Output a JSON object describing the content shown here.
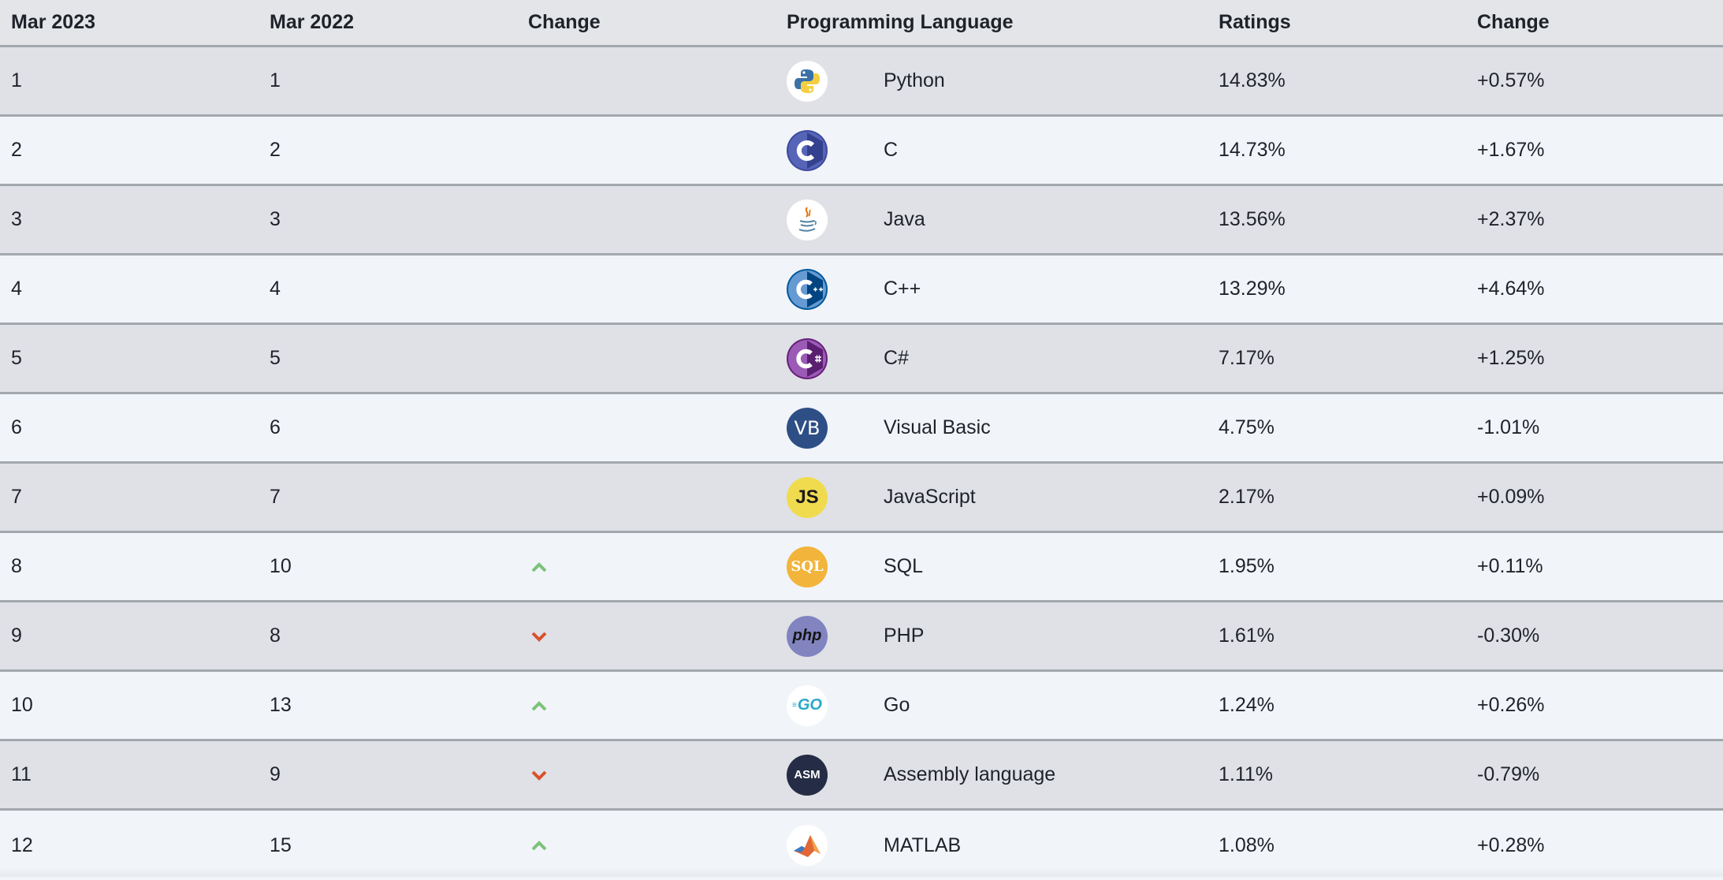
{
  "header": {
    "mar2023": "Mar 2023",
    "mar2022": "Mar 2022",
    "change": "Change",
    "language": "Programming Language",
    "ratings": "Ratings",
    "rating_change": "Change"
  },
  "rows": [
    {
      "cur": "1",
      "prev": "1",
      "trend": "none",
      "icon": "python-logo-icon",
      "lang": "Python",
      "rating": "14.83%",
      "diff": "+0.57%"
    },
    {
      "cur": "2",
      "prev": "2",
      "trend": "none",
      "icon": "c-logo-icon",
      "lang": "C",
      "rating": "14.73%",
      "diff": "+1.67%"
    },
    {
      "cur": "3",
      "prev": "3",
      "trend": "none",
      "icon": "java-logo-icon",
      "lang": "Java",
      "rating": "13.56%",
      "diff": "+2.37%"
    },
    {
      "cur": "4",
      "prev": "4",
      "trend": "none",
      "icon": "cpp-logo-icon",
      "lang": "C++",
      "rating": "13.29%",
      "diff": "+4.64%"
    },
    {
      "cur": "5",
      "prev": "5",
      "trend": "none",
      "icon": "csharp-logo-icon",
      "lang": "C#",
      "rating": "7.17%",
      "diff": "+1.25%"
    },
    {
      "cur": "6",
      "prev": "6",
      "trend": "none",
      "icon": "vb-logo-icon",
      "lang": "Visual Basic",
      "rating": "4.75%",
      "diff": "-1.01%"
    },
    {
      "cur": "7",
      "prev": "7",
      "trend": "none",
      "icon": "javascript-logo-icon",
      "lang": "JavaScript",
      "rating": "2.17%",
      "diff": "+0.09%"
    },
    {
      "cur": "8",
      "prev": "10",
      "trend": "up",
      "icon": "sql-logo-icon",
      "lang": "SQL",
      "rating": "1.95%",
      "diff": "+0.11%"
    },
    {
      "cur": "9",
      "prev": "8",
      "trend": "down",
      "icon": "php-logo-icon",
      "lang": "PHP",
      "rating": "1.61%",
      "diff": "-0.30%"
    },
    {
      "cur": "10",
      "prev": "13",
      "trend": "up",
      "icon": "go-logo-icon",
      "lang": "Go",
      "rating": "1.24%",
      "diff": "+0.26%"
    },
    {
      "cur": "11",
      "prev": "9",
      "trend": "down",
      "icon": "asm-logo-icon",
      "lang": "Assembly language",
      "rating": "1.11%",
      "diff": "-0.79%"
    },
    {
      "cur": "12",
      "prev": "15",
      "trend": "up",
      "icon": "matlab-logo-icon",
      "lang": "MATLAB",
      "rating": "1.08%",
      "diff": "+0.28%"
    }
  ],
  "logo_text": {
    "vb": "VB",
    "js": "JS",
    "sql": "SQL",
    "php": "php",
    "go": "GO",
    "asm": "ASM"
  },
  "colors": {
    "row_odd": "#dfe1e6",
    "row_even": "#f1f4f9",
    "divider": "#a3a8ae",
    "trend_up": "#7cc27a",
    "trend_down": "#d9512c"
  }
}
